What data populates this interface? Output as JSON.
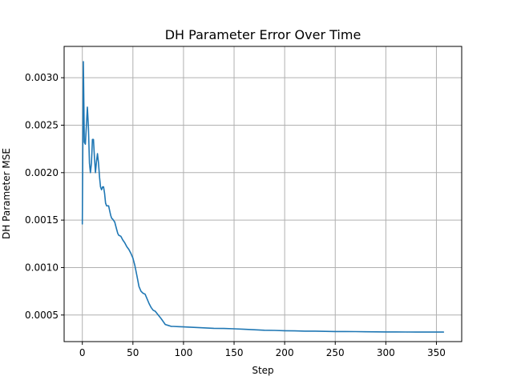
{
  "chart_data": {
    "type": "line",
    "title": "DH Parameter Error Over Time",
    "xlabel": "Step",
    "ylabel": "DH Parameter MSE",
    "xlim": [
      -18,
      375
    ],
    "ylim": [
      0.00022,
      0.00333
    ],
    "xticks": [
      0,
      50,
      100,
      150,
      200,
      250,
      300,
      350
    ],
    "xtick_labels": [
      "0",
      "50",
      "100",
      "150",
      "200",
      "250",
      "300",
      "350"
    ],
    "yticks": [
      0.0005,
      0.001,
      0.0015,
      0.002,
      0.0025,
      0.003
    ],
    "ytick_labels": [
      "0.0005",
      "0.0010",
      "0.0015",
      "0.0020",
      "0.0025",
      "0.0030"
    ],
    "grid": true,
    "line_color": "#1f77b4",
    "series": [
      {
        "x": [
          0,
          1,
          2,
          3,
          4,
          5,
          6,
          7,
          8,
          9,
          10,
          11,
          12,
          13,
          14,
          15,
          16,
          17,
          18,
          19,
          20,
          21,
          22,
          23,
          24,
          25,
          26,
          27,
          28,
          29,
          30,
          32,
          34,
          35,
          36,
          38,
          40,
          42,
          44,
          46,
          48,
          50,
          52,
          54,
          56,
          58,
          60,
          62,
          64,
          66,
          68,
          70,
          72,
          75,
          78,
          80,
          82,
          85,
          88,
          90,
          95,
          100,
          110,
          120,
          130,
          140,
          150,
          160,
          170,
          180,
          190,
          200,
          210,
          220,
          230,
          240,
          250,
          260,
          270,
          280,
          290,
          300,
          310,
          320,
          330,
          340,
          350,
          357
        ],
        "values": [
          0.00146,
          0.00317,
          0.00232,
          0.0023,
          0.0025,
          0.00269,
          0.00248,
          0.0021,
          0.002,
          0.0021,
          0.00235,
          0.00235,
          0.00215,
          0.002,
          0.00212,
          0.0022,
          0.0021,
          0.00195,
          0.00185,
          0.00182,
          0.00185,
          0.00185,
          0.00178,
          0.00168,
          0.00165,
          0.00165,
          0.00165,
          0.0016,
          0.00155,
          0.00152,
          0.00151,
          0.00148,
          0.0014,
          0.00136,
          0.00134,
          0.00133,
          0.00129,
          0.00126,
          0.00122,
          0.00119,
          0.00115,
          0.0011,
          0.00102,
          0.00091,
          0.0008,
          0.00075,
          0.00073,
          0.00072,
          0.00067,
          0.00062,
          0.00058,
          0.00055,
          0.00054,
          0.0005,
          0.00046,
          0.00043,
          0.0004,
          0.00039,
          0.00038,
          0.00038,
          0.000378,
          0.000375,
          0.00037,
          0.000365,
          0.00036,
          0.000358,
          0.000355,
          0.00035,
          0.000345,
          0.00034,
          0.000338,
          0.000335,
          0.000333,
          0.00033,
          0.00033,
          0.000328,
          0.000326,
          0.000326,
          0.000325,
          0.000324,
          0.000323,
          0.000322,
          0.000322,
          0.000321,
          0.00032,
          0.00032,
          0.00032,
          0.00032
        ]
      }
    ]
  }
}
